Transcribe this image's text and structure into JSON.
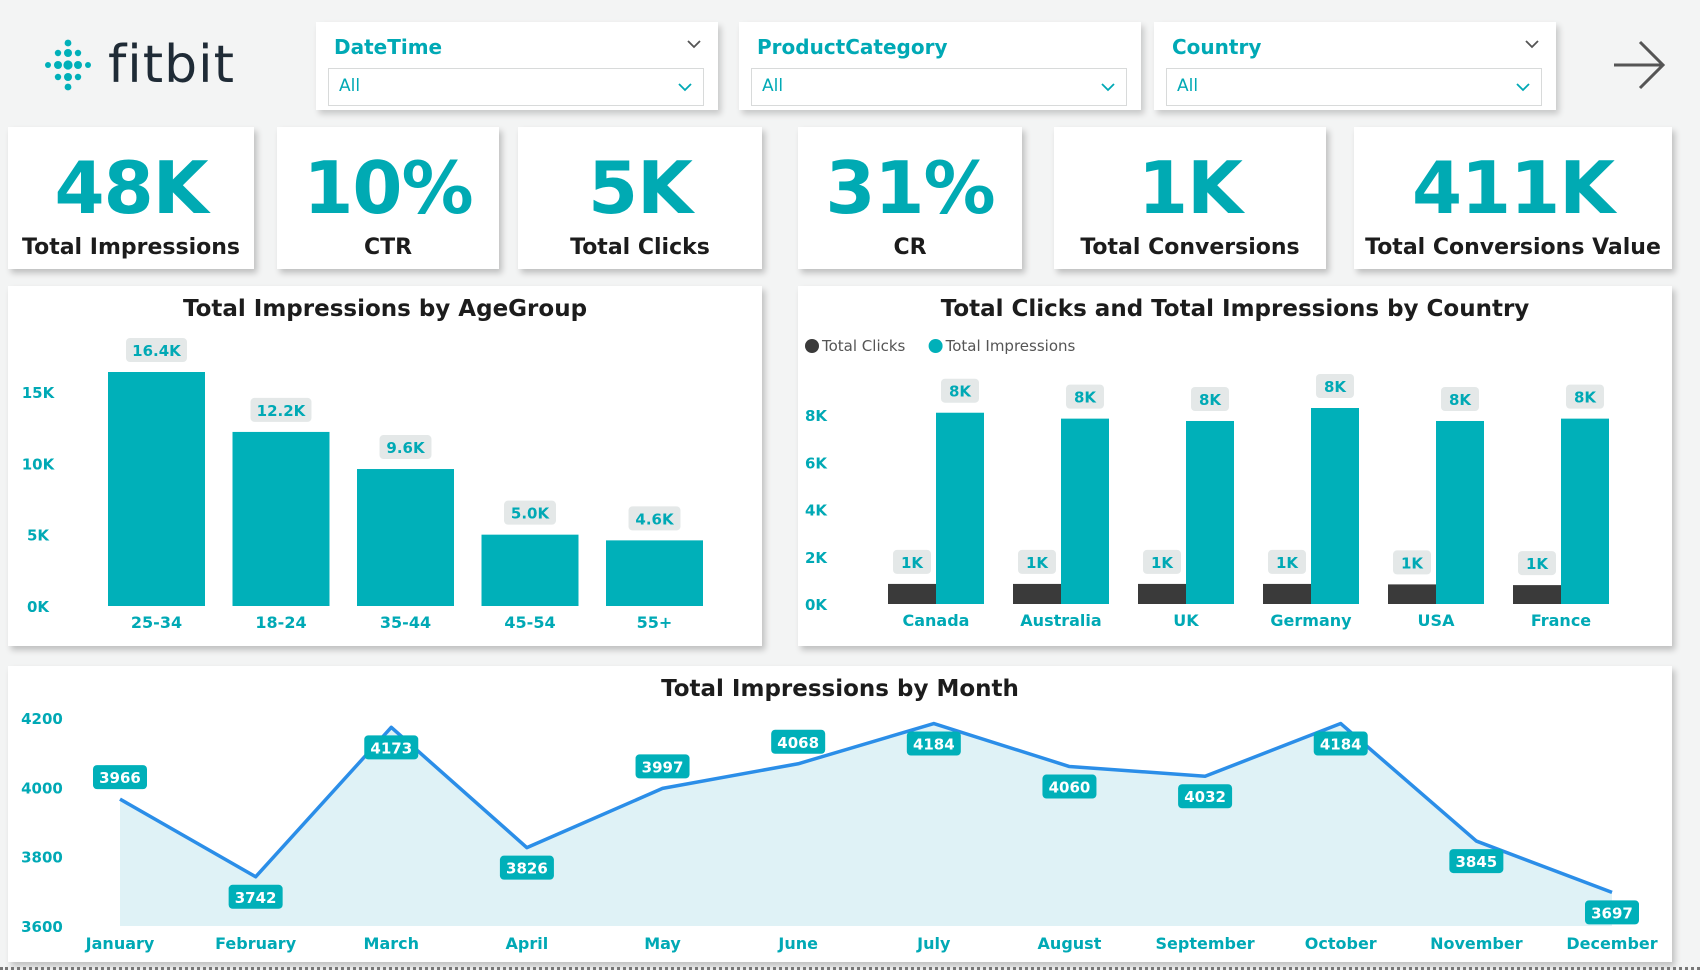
{
  "header": {
    "logo_text": "fitbit",
    "slicers": [
      {
        "title": "DateTime",
        "value": "All"
      },
      {
        "title": "ProductCategory",
        "value": "All"
      },
      {
        "title": "Country",
        "value": "All"
      }
    ]
  },
  "kpis": [
    {
      "value": "48K",
      "label": "Total Impressions"
    },
    {
      "value": "10%",
      "label": "CTR"
    },
    {
      "value": "5K",
      "label": "Total Clicks"
    },
    {
      "value": "31%",
      "label": "CR"
    },
    {
      "value": "1K",
      "label": "Total Conversions"
    },
    {
      "value": "411K",
      "label": "Total Conversions Value"
    }
  ],
  "colors": {
    "teal": "#00b0b9",
    "dark": "#3a3a3a",
    "accent_text": "#00a9b5",
    "line": "#2b8ee8",
    "area": "#dff2f6"
  },
  "chart_data": [
    {
      "type": "bar",
      "title": "Total Impressions by AgeGroup",
      "categories": [
        "25-34",
        "18-24",
        "35-44",
        "45-54",
        "55+"
      ],
      "values": [
        16400,
        12200,
        9600,
        5000,
        4600
      ],
      "data_labels": [
        "16.4K",
        "12.2K",
        "9.6K",
        "5.0K",
        "4.6K"
      ],
      "yticks": [
        0,
        5000,
        10000,
        15000
      ],
      "ytick_labels": [
        "0K",
        "5K",
        "10K",
        "15K"
      ],
      "ylim": [
        0,
        16400
      ],
      "grid": false
    },
    {
      "type": "bar",
      "title": "Total Clicks and Total Impressions by Country",
      "categories": [
        "Canada",
        "Australia",
        "UK",
        "Germany",
        "USA",
        "France"
      ],
      "series": [
        {
          "name": "Total Clicks",
          "values": [
            850,
            850,
            850,
            850,
            830,
            800
          ],
          "labels": [
            "1K",
            "1K",
            "1K",
            "1K",
            "1K",
            "1K"
          ],
          "color": "#3a3a3a"
        },
        {
          "name": "Total Impressions",
          "values": [
            8100,
            7850,
            7750,
            8300,
            7750,
            7850
          ],
          "labels": [
            "8K",
            "8K",
            "8K",
            "8K",
            "8K",
            "8K"
          ],
          "color": "#00b0b9"
        }
      ],
      "yticks": [
        0,
        2000,
        4000,
        6000,
        8000
      ],
      "ytick_labels": [
        "0K",
        "2K",
        "4K",
        "6K",
        "8K"
      ],
      "ylim": [
        0,
        8300
      ],
      "legend": "top-left",
      "grid": false
    },
    {
      "type": "area",
      "title": "Total Impressions by Month",
      "categories": [
        "January",
        "February",
        "March",
        "April",
        "May",
        "June",
        "July",
        "August",
        "September",
        "October",
        "November",
        "December"
      ],
      "values": [
        3966,
        3742,
        4173,
        3826,
        3997,
        4068,
        4184,
        4060,
        4032,
        4184,
        3845,
        3697
      ],
      "yticks": [
        3600,
        3800,
        4000,
        4200
      ],
      "ytick_labels": [
        "3600",
        "3800",
        "4000",
        "4200"
      ],
      "ylim": [
        3600,
        4200
      ],
      "label_positions": [
        "above",
        "below",
        "below",
        "below",
        "above",
        "above",
        "below",
        "below",
        "below",
        "below",
        "below",
        "below"
      ],
      "grid": false
    }
  ]
}
